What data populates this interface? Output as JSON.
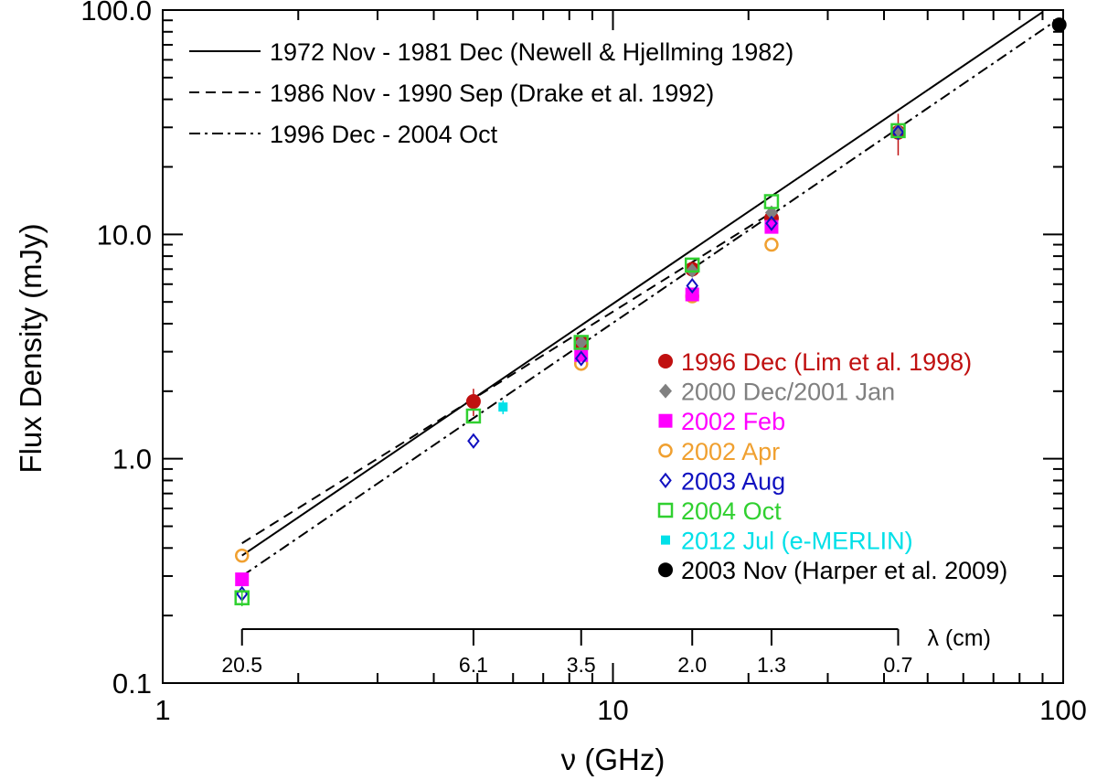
{
  "chart_data": {
    "type": "scatter",
    "title": "",
    "xlabel": "ν (GHz)",
    "ylabel": "Flux Density (mJy)",
    "xscale": "log",
    "yscale": "log",
    "xlim": [
      1,
      100
    ],
    "ylim": [
      0.1,
      100
    ],
    "xticks": [
      {
        "value": 1,
        "label": "1"
      },
      {
        "value": 10,
        "label": "10"
      },
      {
        "value": 100,
        "label": "100"
      }
    ],
    "yticks": [
      {
        "value": 0.1,
        "label": "0.1"
      },
      {
        "value": 1,
        "label": "1.0"
      },
      {
        "value": 10,
        "label": "10.0"
      },
      {
        "value": 100,
        "label": "100.0"
      }
    ],
    "wavelength_axis": {
      "title": "λ (cm)",
      "ticks": [
        {
          "freq": 1.5,
          "label": "20.5"
        },
        {
          "freq": 4.9,
          "label": "6.1"
        },
        {
          "freq": 8.5,
          "label": "3.5"
        },
        {
          "freq": 15.0,
          "label": "2.0"
        },
        {
          "freq": 22.5,
          "label": "1.3"
        },
        {
          "freq": 43.0,
          "label": "0.7"
        }
      ]
    },
    "lines": [
      {
        "name": "1972 Nov - 1981 Dec (Newell & Hjellming 1982)",
        "style": "solid",
        "x": [
          1.5,
          90
        ],
        "y": [
          0.37,
          98
        ]
      },
      {
        "name": "1986 Nov - 1990 Sep (Drake et al. 1992)",
        "style": "dashed",
        "x": [
          1.5,
          22.5
        ],
        "y": [
          0.42,
          12.5
        ]
      },
      {
        "name": "1996 Dec - 2004 Oct",
        "style": "dashdot",
        "x": [
          1.5,
          95
        ],
        "y": [
          0.3,
          88
        ]
      }
    ],
    "series": [
      {
        "name": "1996 Dec (Lim et al. 1998)",
        "color": "#c01010",
        "marker": "filled-circle",
        "x": [
          4.9,
          8.5,
          15.0,
          22.5,
          43.0
        ],
        "y": [
          1.8,
          3.3,
          7.0,
          11.8,
          28.5
        ],
        "err": [
          0.25,
          0.2,
          0.4,
          0,
          6.0
        ]
      },
      {
        "name": "2000 Dec/2001 Jan",
        "color": "#808080",
        "marker": "filled-diamond",
        "x": [
          8.5,
          15.0,
          22.5,
          43.0
        ],
        "y": [
          3.3,
          6.9,
          12.5,
          29.0
        ],
        "err": [
          0,
          0,
          0,
          0
        ]
      },
      {
        "name": "2002 Feb",
        "color": "#ff00ff",
        "marker": "filled-square",
        "x": [
          1.5,
          8.5,
          15.0,
          22.5
        ],
        "y": [
          0.29,
          2.9,
          5.4,
          10.8
        ],
        "err": [
          0,
          0,
          0,
          0
        ]
      },
      {
        "name": "2002 Apr",
        "color": "#f0a030",
        "marker": "open-circle",
        "x": [
          1.5,
          8.5,
          15.0,
          22.5
        ],
        "y": [
          0.37,
          2.65,
          5.3,
          9.0
        ],
        "err": [
          0,
          0,
          0,
          0
        ]
      },
      {
        "name": "2003 Aug",
        "color": "#1010c0",
        "marker": "open-diamond",
        "x": [
          1.5,
          4.9,
          8.5,
          15.0,
          22.5,
          43.0
        ],
        "y": [
          0.25,
          1.2,
          2.8,
          5.9,
          11.2,
          28.5
        ],
        "err": [
          0,
          0,
          0,
          0,
          0,
          0
        ]
      },
      {
        "name": "2004 Oct",
        "color": "#30d030",
        "marker": "open-square",
        "x": [
          1.5,
          4.9,
          8.5,
          15.0,
          22.5,
          43.0
        ],
        "y": [
          0.24,
          1.55,
          3.3,
          7.3,
          14.0,
          29.0
        ],
        "err": [
          0.02,
          0,
          0,
          0,
          0,
          0
        ]
      },
      {
        "name": "2012 Jul (e-MERLIN)",
        "color": "#00e0e8",
        "marker": "small-filled-square",
        "x": [
          5.7
        ],
        "y": [
          1.7
        ],
        "err": [
          0.12
        ]
      },
      {
        "name": "2003 Nov (Harper et al. 2009)",
        "color": "#000000",
        "marker": "filled-circle",
        "x": [
          98
        ],
        "y": [
          86
        ],
        "err": [
          0
        ]
      }
    ],
    "legend_position": "center-right",
    "line_legend_position": "top-left"
  }
}
